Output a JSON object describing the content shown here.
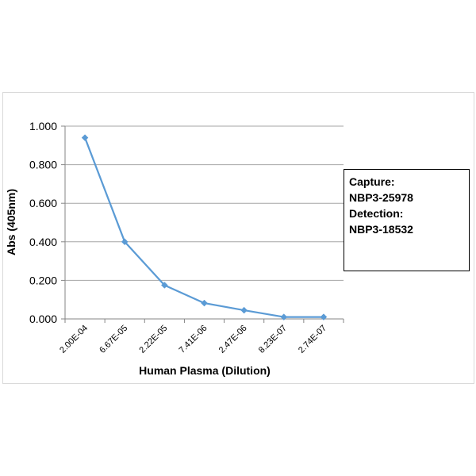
{
  "chart_data": {
    "type": "line",
    "title": "",
    "xlabel": "Human Plasma (Dilution)",
    "ylabel": "Abs (405nm)",
    "categories": [
      "2.00E-04",
      "6.67E-05",
      "2.22E-05",
      "7.41E-06",
      "2.47E-06",
      "8.23E-07",
      "2.74E-07"
    ],
    "series": [
      {
        "values": [
          0.94,
          0.4,
          0.175,
          0.082,
          0.045,
          0.01,
          0.01
        ]
      }
    ],
    "ylim": [
      0,
      1
    ],
    "yticks": [
      "0.000",
      "0.200",
      "0.400",
      "0.600",
      "0.800",
      "1.000"
    ],
    "grid": true,
    "legend_placement": "right",
    "colors": {
      "series": "#5b9bd5",
      "grid": "#a6a6a6",
      "axis": "#868686"
    }
  },
  "legend_box": {
    "lines": [
      "Capture:",
      "NBP3-25978",
      "Detection:",
      "NBP3-18532"
    ]
  }
}
